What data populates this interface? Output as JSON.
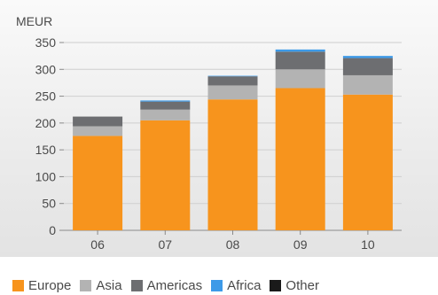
{
  "chart_data": {
    "type": "bar",
    "stacked": true,
    "ylabel": "MEUR",
    "xlabel": "",
    "title": "",
    "ylim": [
      0,
      350
    ],
    "yticks": [
      0,
      50,
      100,
      150,
      200,
      250,
      300,
      350
    ],
    "grid": true,
    "legend_position": "bottom",
    "categories": [
      "06",
      "07",
      "08",
      "09",
      "10"
    ],
    "series": [
      {
        "name": "Europe",
        "color": "#f7941d",
        "values": [
          176,
          205,
          244,
          265,
          253
        ]
      },
      {
        "name": "Asia",
        "color": "#b3b3b3",
        "values": [
          18,
          20,
          26,
          35,
          36
        ]
      },
      {
        "name": "Americas",
        "color": "#6d6e71",
        "values": [
          18,
          15,
          17,
          33,
          32
        ]
      },
      {
        "name": "Africa",
        "color": "#3d9ae8",
        "values": [
          0,
          2,
          1,
          4,
          4
        ]
      },
      {
        "name": "Other",
        "color": "#1a1a1a",
        "values": [
          0,
          0,
          0,
          0,
          0
        ]
      }
    ]
  }
}
